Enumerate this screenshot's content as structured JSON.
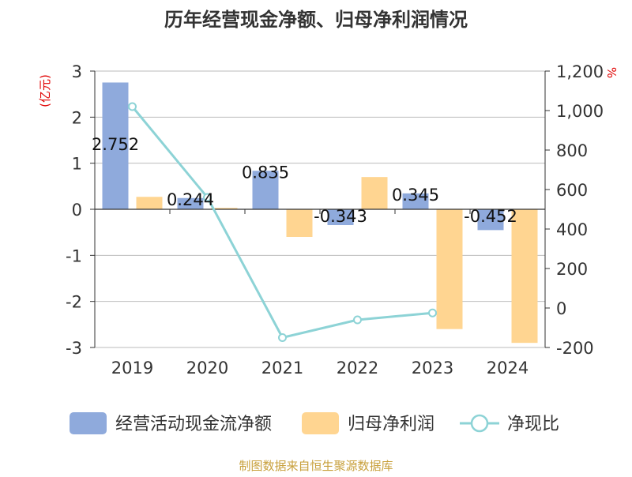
{
  "chart_data": {
    "type": "bar",
    "title": "历年经营现金净额、归母净利润情况",
    "categories": [
      "2019",
      "2020",
      "2021",
      "2022",
      "2023",
      "2024"
    ],
    "left_axis": {
      "unit_label": "(亿元)",
      "range": [
        -3,
        3
      ],
      "ticks": [
        "3",
        "2",
        "1",
        "0",
        "-1",
        "-2",
        "-3"
      ],
      "tick_values": [
        3,
        2,
        1,
        0,
        -1,
        -2,
        -3
      ]
    },
    "right_axis": {
      "unit_label": "%",
      "range": [
        -200,
        1200
      ],
      "ticks": [
        "1,200",
        "1,000",
        "800",
        "600",
        "400",
        "200",
        "0",
        "-200"
      ],
      "tick_values": [
        1200,
        1000,
        800,
        600,
        400,
        200,
        0,
        -200
      ]
    },
    "series": [
      {
        "name": "经营活动现金流净额",
        "type": "bar",
        "axis": "left",
        "color": "#8faadc",
        "values": [
          2.752,
          0.244,
          0.835,
          -0.343,
          0.345,
          -0.452
        ],
        "labels": [
          "2.752",
          "0.244",
          "0.835",
          "-0.343",
          "0.345",
          "-0.452"
        ]
      },
      {
        "name": "归母净利润",
        "type": "bar",
        "axis": "left",
        "color": "#ffd591",
        "values": [
          0.27,
          0.03,
          -0.6,
          0.7,
          -2.6,
          -2.9
        ]
      },
      {
        "name": "净现比",
        "type": "line",
        "axis": "right",
        "color": "#8dd3d6",
        "values": [
          1020,
          560,
          -150,
          -60,
          -25,
          null
        ]
      }
    ],
    "footer": "制图数据来自恒生聚源数据库",
    "colors": {
      "title": "#333333",
      "axis_text": "#333333",
      "unit_label": "#e00000",
      "grid": "#bbbbbb",
      "footer": "#c8a03c"
    }
  }
}
